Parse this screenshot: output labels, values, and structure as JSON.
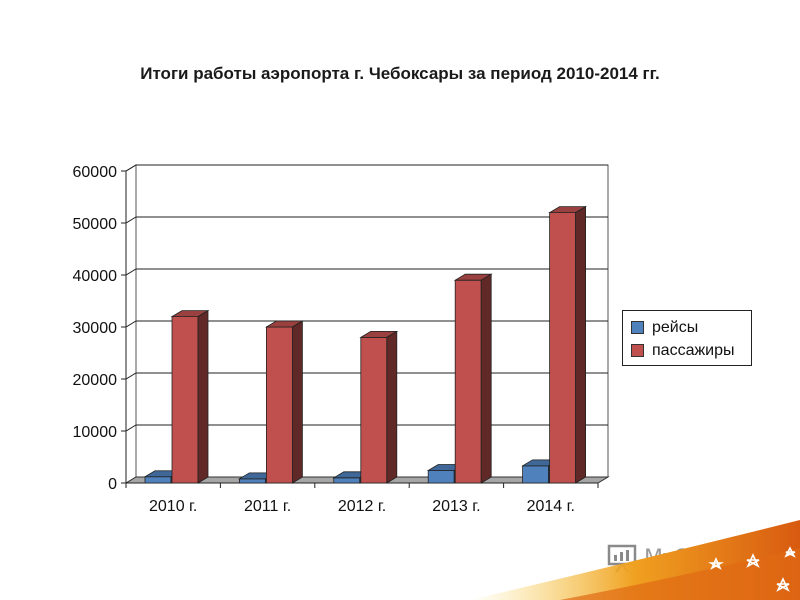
{
  "chart_data": {
    "type": "bar",
    "title": "Итоги работы аэропорта г. Чебоксары за период 2010-2014 гг.",
    "categories": [
      "2010 г.",
      "2011 г.",
      "2012 г.",
      "2013 г.",
      "2014 г."
    ],
    "series": [
      {
        "name": "рейсы",
        "color": "#4f81bd",
        "values": [
          1200,
          800,
          1000,
          2400,
          3300
        ]
      },
      {
        "name": "пассажиры",
        "color": "#c0504d",
        "values": [
          32000,
          30000,
          28000,
          39000,
          52000
        ]
      }
    ],
    "ylim": [
      0,
      60000
    ],
    "yticks": [
      "0",
      "10000",
      "20000",
      "30000",
      "40000",
      "50000",
      "60000"
    ],
    "grid": true,
    "legend": "right"
  },
  "watermark": {
    "text": "MyShared",
    "icon": "presentation-board-icon"
  }
}
